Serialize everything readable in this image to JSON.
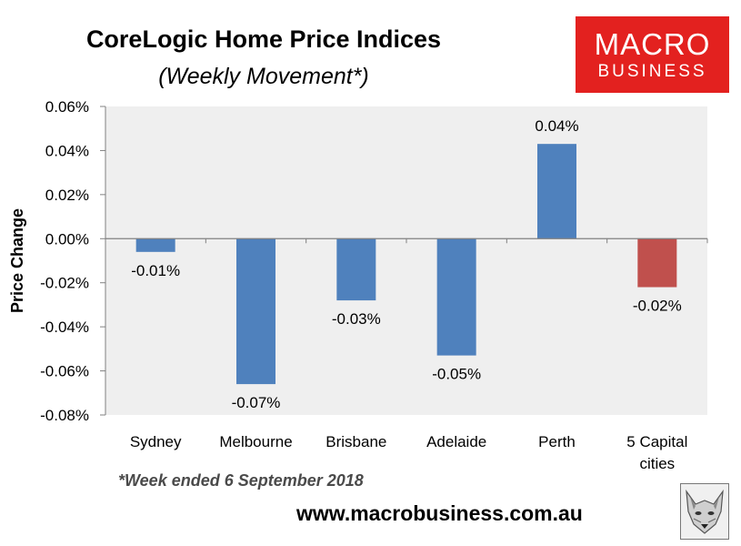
{
  "header": {
    "title": "CoreLogic Home Price Indices",
    "subtitle": "(Weekly Movement*)"
  },
  "logo": {
    "line1": "MACRO",
    "line2": "BUSINESS",
    "color": "#e3211f"
  },
  "footer": {
    "footnote": "*Week ended 6 September 2018",
    "url": "www.macrobusiness.com.au",
    "fox_icon": "fox-logo-icon"
  },
  "chart_data": {
    "type": "bar",
    "title": "CoreLogic Home Price Indices",
    "subtitle": "(Weekly Movement*)",
    "ylabel": "Price Change",
    "xlabel": "",
    "ylim": [
      -0.08,
      0.06
    ],
    "yticks": [
      "0.06%",
      "0.04%",
      "0.02%",
      "0.00%",
      "-0.02%",
      "-0.04%",
      "-0.06%",
      "-0.08%"
    ],
    "ytick_values": [
      0.06,
      0.04,
      0.02,
      0.0,
      -0.02,
      -0.04,
      -0.06,
      -0.08
    ],
    "categories": [
      [
        "Sydney"
      ],
      [
        "Melbourne"
      ],
      [
        "Brisbane"
      ],
      [
        "Adelaide"
      ],
      [
        "Perth"
      ],
      [
        "5 Capital",
        "cities"
      ]
    ],
    "values": [
      -0.006,
      -0.066,
      -0.028,
      -0.053,
      0.043,
      -0.022
    ],
    "data_labels": [
      "-0.01%",
      "-0.07%",
      "-0.03%",
      "-0.05%",
      "0.04%",
      "-0.02%"
    ],
    "colors": [
      "#4f81bd",
      "#4f81bd",
      "#4f81bd",
      "#4f81bd",
      "#4f81bd",
      "#c0504d"
    ],
    "plot_background": "#efefef",
    "grid": false,
    "legend": "none"
  }
}
